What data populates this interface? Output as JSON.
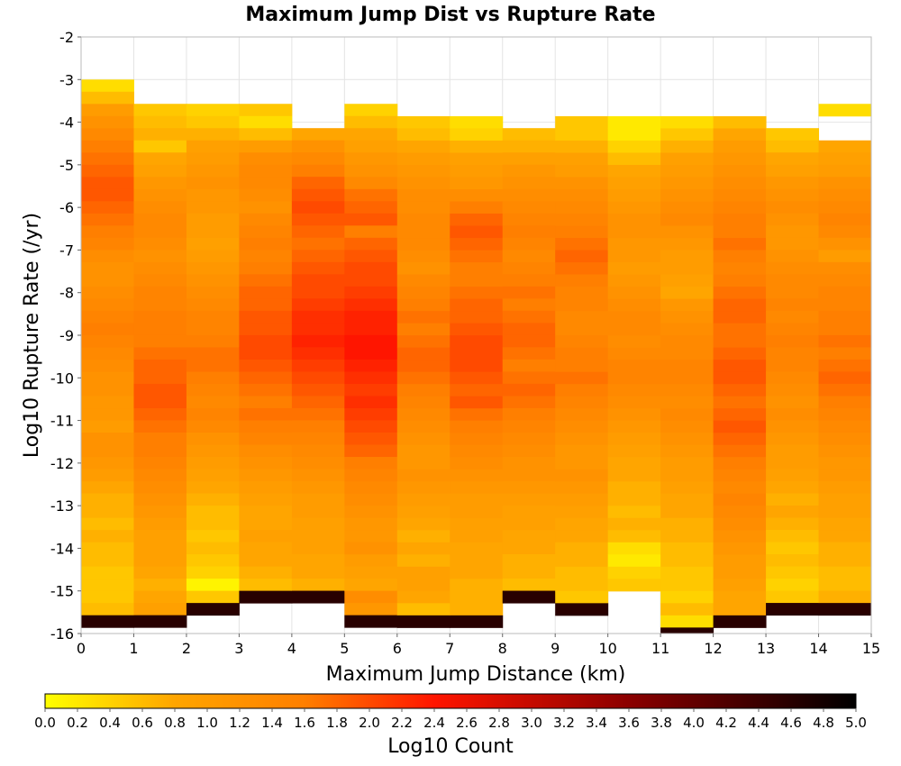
{
  "chart_data": {
    "type": "heatmap",
    "title": "Maximum Jump Dist vs Rupture Rate",
    "xlabel": "Maximum Jump Distance (km)",
    "ylabel": "Log10 Rupture Rate (/yr)",
    "xlim": [
      0,
      15
    ],
    "ylim": [
      -16,
      -2
    ],
    "x_ticks": [
      "0",
      "1",
      "2",
      "3",
      "4",
      "5",
      "6",
      "7",
      "8",
      "9",
      "10",
      "11",
      "12",
      "13",
      "14",
      "15"
    ],
    "y_ticks": [
      "-2",
      "-3",
      "-4",
      "-5",
      "-6",
      "-7",
      "-8",
      "-9",
      "-10",
      "-11",
      "-12",
      "-13",
      "-14",
      "-15",
      "-16"
    ],
    "grid": true,
    "x_bin_width": 1,
    "y_bin_width": 0.2857,
    "colorbar": {
      "label": "Log10 Count",
      "range": [
        0,
        5
      ],
      "colors": [
        "#ffff00",
        "#ffa500",
        "#ff7f00",
        "#ff1500",
        "#8b0000",
        "#000000"
      ],
      "stops": [
        0,
        0.8,
        1.6,
        2.4,
        3.6,
        5.0
      ],
      "ticks": [
        "0.0",
        "0.2",
        "0.4",
        "0.6",
        "0.8",
        "1.0",
        "1.2",
        "1.4",
        "1.6",
        "1.8",
        "2.0",
        "2.2",
        "2.4",
        "2.6",
        "2.8",
        "3.0",
        "3.2",
        "3.4",
        "3.6",
        "3.8",
        "4.0",
        "4.2",
        "4.4",
        "4.6",
        "4.8",
        "5.0"
      ]
    },
    "series": [
      {
        "x": 0.5,
        "y_top": -3.0,
        "values": [
          0.3,
          0.6,
          1.0,
          1.2,
          1.4,
          1.6,
          1.7,
          1.8,
          1.9,
          1.9,
          1.8,
          1.7,
          1.6,
          1.5,
          1.3,
          1.2,
          1.2,
          1.3,
          1.4,
          1.5,
          1.6,
          1.5,
          1.4,
          1.3,
          1.2,
          1.2,
          1.1,
          1.1,
          1.0,
          1.2,
          1.2,
          1.1,
          1.0,
          0.8,
          0.7,
          0.7,
          0.6,
          0.7,
          0.6,
          0.6,
          0.5,
          0.5,
          0.5,
          0.6,
          4.6
        ]
      },
      {
        "x": 1.5,
        "y_top": -3.57,
        "values": [
          0.5,
          0.6,
          0.7,
          0.5,
          0.8,
          0.9,
          1.1,
          1.2,
          1.3,
          1.4,
          1.4,
          1.3,
          1.2,
          1.3,
          1.4,
          1.5,
          1.5,
          1.6,
          1.6,
          1.6,
          1.7,
          1.8,
          1.8,
          1.9,
          1.9,
          1.8,
          1.7,
          1.6,
          1.6,
          1.5,
          1.4,
          1.3,
          1.2,
          1.1,
          1.0,
          0.9,
          0.9,
          0.9,
          0.8,
          0.7,
          0.8,
          0.9,
          4.6
        ]
      },
      {
        "x": 2.5,
        "y_top": -3.57,
        "values": [
          0.4,
          0.5,
          0.7,
          0.9,
          1.0,
          1.1,
          1.2,
          1.1,
          1.1,
          1.0,
          1.0,
          0.9,
          1.0,
          1.1,
          1.2,
          1.3,
          1.4,
          1.5,
          1.5,
          1.6,
          1.7,
          1.7,
          1.6,
          1.5,
          1.4,
          1.5,
          1.4,
          1.2,
          1.1,
          1.0,
          0.9,
          0.8,
          0.7,
          0.6,
          0.6,
          0.5,
          0.6,
          0.5,
          0.4,
          0.1,
          0.5,
          4.6
        ]
      },
      {
        "x": 3.5,
        "y_top": -3.57,
        "values": [
          0.5,
          0.3,
          0.6,
          1.0,
          1.3,
          1.4,
          1.4,
          1.3,
          1.2,
          1.4,
          1.5,
          1.6,
          1.5,
          1.6,
          1.7,
          1.8,
          1.8,
          1.9,
          1.9,
          2.0,
          2.0,
          1.9,
          1.8,
          1.7,
          1.6,
          1.7,
          1.6,
          1.5,
          1.3,
          1.2,
          1.1,
          1.0,
          0.9,
          0.8,
          0.8,
          0.9,
          0.8,
          0.8,
          0.7,
          0.6,
          4.6
        ]
      },
      {
        "x": 4.5,
        "y_top": -4.14,
        "values": [
          0.8,
          1.2,
          1.4,
          1.6,
          1.8,
          1.9,
          2.0,
          1.9,
          1.8,
          1.7,
          1.8,
          1.9,
          2.0,
          2.0,
          2.1,
          2.2,
          2.2,
          2.3,
          2.2,
          2.1,
          2.0,
          1.9,
          1.8,
          1.7,
          1.6,
          1.5,
          1.4,
          1.3,
          1.2,
          1.1,
          1.0,
          1.0,
          0.9,
          0.9,
          0.9,
          0.8,
          0.8,
          0.7,
          4.6
        ]
      },
      {
        "x": 5.5,
        "y_top": -3.57,
        "values": [
          0.4,
          0.6,
          0.8,
          0.9,
          1.1,
          1.2,
          1.4,
          1.7,
          1.8,
          1.9,
          1.6,
          1.8,
          1.9,
          2.0,
          2.0,
          2.1,
          2.2,
          2.3,
          2.3,
          2.4,
          2.4,
          2.3,
          2.2,
          2.1,
          2.2,
          2.1,
          2.0,
          1.9,
          1.8,
          1.6,
          1.5,
          1.4,
          1.3,
          1.2,
          1.1,
          1.1,
          1.2,
          1.0,
          0.9,
          0.8,
          1.3,
          1.1,
          4.6
        ]
      },
      {
        "x": 6.5,
        "y_top": -3.86,
        "values": [
          0.5,
          0.6,
          0.8,
          1.0,
          1.1,
          1.2,
          1.3,
          1.3,
          1.4,
          1.4,
          1.4,
          1.3,
          1.2,
          1.4,
          1.5,
          1.6,
          1.7,
          1.6,
          1.7,
          1.8,
          1.8,
          1.7,
          1.6,
          1.5,
          1.4,
          1.3,
          1.2,
          1.1,
          1.1,
          1.2,
          1.1,
          1.0,
          0.9,
          0.8,
          0.7,
          0.8,
          0.7,
          0.9,
          0.9,
          0.8,
          0.6,
          4.6
        ]
      },
      {
        "x": 7.5,
        "y_top": -3.86,
        "values": [
          0.3,
          0.4,
          0.7,
          0.9,
          1.0,
          1.1,
          1.3,
          1.6,
          1.8,
          1.9,
          1.8,
          1.7,
          1.6,
          1.6,
          1.7,
          1.8,
          1.8,
          1.9,
          2.0,
          2.0,
          2.0,
          1.9,
          1.8,
          1.9,
          1.7,
          1.6,
          1.5,
          1.4,
          1.3,
          1.2,
          1.1,
          1.0,
          1.0,
          0.9,
          0.9,
          0.8,
          0.8,
          0.8,
          0.7,
          0.7,
          0.7,
          4.6
        ]
      },
      {
        "x": 8.5,
        "y_top": -4.14,
        "values": [
          0.6,
          0.7,
          0.9,
          1.1,
          1.2,
          1.3,
          1.4,
          1.5,
          1.6,
          1.5,
          1.4,
          1.5,
          1.6,
          1.7,
          1.6,
          1.7,
          1.8,
          1.8,
          1.7,
          1.6,
          1.7,
          1.8,
          1.7,
          1.6,
          1.5,
          1.4,
          1.3,
          1.2,
          1.2,
          1.1,
          1.0,
          0.9,
          0.9,
          0.8,
          0.8,
          0.7,
          0.7,
          0.6,
          4.6
        ]
      },
      {
        "x": 9.5,
        "y_top": -3.86,
        "values": [
          0.5,
          0.5,
          0.7,
          0.9,
          1.0,
          1.2,
          1.3,
          1.4,
          1.5,
          1.6,
          1.7,
          1.8,
          1.7,
          1.6,
          1.5,
          1.5,
          1.4,
          1.4,
          1.5,
          1.6,
          1.6,
          1.7,
          1.6,
          1.5,
          1.4,
          1.3,
          1.2,
          1.1,
          1.1,
          1.2,
          1.1,
          1.0,
          0.9,
          0.8,
          0.8,
          0.7,
          0.7,
          0.6,
          0.6,
          0.5,
          4.6
        ]
      },
      {
        "x": 10.5,
        "y_top": -3.86,
        "values": [
          0.2,
          0.2,
          0.4,
          0.6,
          0.8,
          0.9,
          1.0,
          1.1,
          1.2,
          1.2,
          1.1,
          1.1,
          1.0,
          1.1,
          1.2,
          1.3,
          1.4,
          1.4,
          1.3,
          1.4,
          1.5,
          1.5,
          1.4,
          1.3,
          1.2,
          1.1,
          1.0,
          0.9,
          0.8,
          0.8,
          0.7,
          0.7,
          0.6,
          0.7,
          0.6,
          0.3,
          0.2,
          0.4,
          0.5
        ]
      },
      {
        "x": 11.5,
        "y_top": -3.86,
        "values": [
          0.3,
          0.5,
          0.7,
          0.9,
          1.0,
          1.1,
          1.2,
          1.3,
          1.4,
          1.2,
          1.1,
          1.0,
          1.0,
          0.9,
          0.8,
          1.1,
          1.2,
          1.3,
          1.4,
          1.4,
          1.5,
          1.5,
          1.4,
          1.3,
          1.4,
          1.3,
          1.2,
          1.1,
          1.0,
          1.0,
          0.9,
          0.8,
          0.8,
          0.7,
          0.7,
          0.6,
          0.6,
          0.5,
          0.5,
          0.4,
          0.6,
          0.3,
          4.6
        ]
      },
      {
        "x": 12.5,
        "y_top": -3.86,
        "values": [
          0.6,
          0.8,
          1.0,
          1.1,
          1.2,
          1.3,
          1.4,
          1.5,
          1.6,
          1.6,
          1.7,
          1.6,
          1.5,
          1.6,
          1.7,
          1.8,
          1.8,
          1.7,
          1.7,
          1.8,
          1.9,
          1.9,
          1.8,
          1.7,
          1.8,
          1.9,
          1.8,
          1.7,
          1.6,
          1.5,
          1.4,
          1.5,
          1.4,
          1.3,
          1.2,
          1.1,
          1.0,
          1.0,
          0.9,
          0.8,
          0.8,
          4.6
        ]
      },
      {
        "x": 13.5,
        "y_top": -4.14,
        "values": [
          0.5,
          0.6,
          0.8,
          0.9,
          1.1,
          1.2,
          1.3,
          1.2,
          1.1,
          1.1,
          1.2,
          1.3,
          1.4,
          1.4,
          1.5,
          1.4,
          1.5,
          1.6,
          1.5,
          1.5,
          1.4,
          1.3,
          1.2,
          1.3,
          1.2,
          1.1,
          1.0,
          1.0,
          0.9,
          0.8,
          0.7,
          0.8,
          0.7,
          0.6,
          0.5,
          0.6,
          0.5,
          0.4,
          0.5,
          4.6
        ]
      },
      {
        "x": 14.5,
        "y_top": -3.57,
        "values": [
          0.3,
          -1,
          -1,
          0.8,
          0.9,
          1.0,
          1.2,
          1.3,
          1.4,
          1.5,
          1.4,
          1.2,
          1.0,
          1.3,
          1.4,
          1.5,
          1.5,
          1.6,
          1.6,
          1.7,
          1.6,
          1.7,
          1.8,
          1.7,
          1.6,
          1.5,
          1.4,
          1.3,
          1.2,
          1.1,
          1.1,
          1.0,
          0.9,
          0.9,
          0.8,
          0.8,
          0.7,
          0.7,
          0.6,
          0.6,
          0.7,
          4.6
        ]
      }
    ]
  }
}
